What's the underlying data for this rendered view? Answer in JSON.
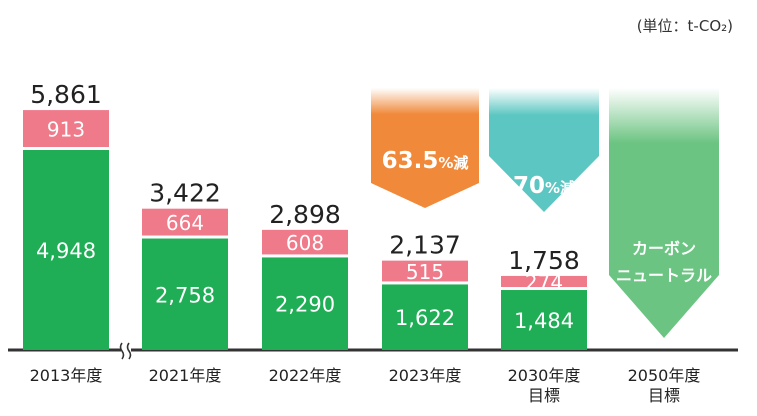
{
  "unit_label": "(単位：t-CO₂)",
  "colors": {
    "green": "#1fae55",
    "pink": "#ef7a8a",
    "orange": "#f0893a",
    "teal": "#5cc6c2",
    "light_green": "#6cc482",
    "axis": "#333333"
  },
  "chart_data": {
    "type": "bar",
    "stacked": true,
    "categories": [
      "2013年度",
      "2021年度",
      "2022年度",
      "2023年度",
      "2030年度\n目標",
      "2050年度\n目標"
    ],
    "series": [
      {
        "values": [
          4948,
          2758,
          2290,
          1622,
          1484,
          null
        ],
        "labels": [
          "4,948",
          "2,758",
          "2,290",
          "1,622",
          "1,484",
          ""
        ]
      },
      {
        "values": [
          913,
          664,
          608,
          515,
          274,
          null
        ],
        "labels": [
          "913",
          "664",
          "608",
          "515",
          "274",
          ""
        ]
      }
    ],
    "totals": [
      "5,861",
      "3,422",
      "2,898",
      "2,137",
      "1,758",
      ""
    ],
    "axis_break_after": "2013年度",
    "annotations": [
      {
        "category": "2023年度",
        "number": "63.5",
        "suffix": "%減",
        "color": "orange"
      },
      {
        "category": "2030年度\n目標",
        "number": "70",
        "suffix": "%減",
        "color": "teal"
      },
      {
        "category": "2050年度\n目標",
        "lines": [
          "カーボン",
          "ニュートラル"
        ],
        "color": "light_green"
      }
    ]
  }
}
